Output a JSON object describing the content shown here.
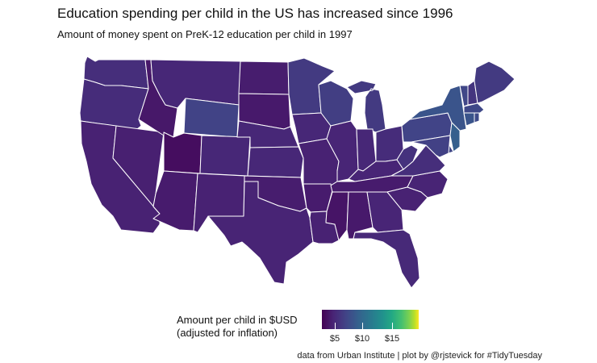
{
  "title": "Education spending per child in the US has increased since 1996",
  "subtitle": "Amount of money spent on PreK-12 education per child in 1997",
  "legend": {
    "title_line1": "Amount per child in $USD",
    "title_line2": "(adjusted for inflation)",
    "ticks": [
      "$5",
      "$10",
      "$15"
    ],
    "palette": "viridis",
    "range": [
      2.5,
      18
    ]
  },
  "caption": "data from Urban Institute | plot by @rjstevick for #TidyTuesday",
  "colors": {
    "low": "#440154",
    "high": "#fde725",
    "border": "#ffffff"
  },
  "states": [
    {
      "name": "WA",
      "value": 5.1
    },
    {
      "name": "OR",
      "value": 5.0
    },
    {
      "name": "CA",
      "value": 4.4
    },
    {
      "name": "NV",
      "value": 4.3
    },
    {
      "name": "ID",
      "value": 3.8
    },
    {
      "name": "MT",
      "value": 4.7
    },
    {
      "name": "WY",
      "value": 6.3
    },
    {
      "name": "UT",
      "value": 3.2
    },
    {
      "name": "AZ",
      "value": 4.0
    },
    {
      "name": "CO",
      "value": 4.7
    },
    {
      "name": "NM",
      "value": 4.4
    },
    {
      "name": "ND",
      "value": 4.1
    },
    {
      "name": "SD",
      "value": 3.9
    },
    {
      "name": "NE",
      "value": 4.7
    },
    {
      "name": "KS",
      "value": 4.7
    },
    {
      "name": "OK",
      "value": 4.1
    },
    {
      "name": "TX",
      "value": 4.5
    },
    {
      "name": "MN",
      "value": 5.8
    },
    {
      "name": "IA",
      "value": 4.7
    },
    {
      "name": "MO",
      "value": 4.4
    },
    {
      "name": "AR",
      "value": 4.0
    },
    {
      "name": "LA",
      "value": 4.4
    },
    {
      "name": "WI",
      "value": 6.0
    },
    {
      "name": "IL",
      "value": 4.6
    },
    {
      "name": "MI",
      "value": 5.8
    },
    {
      "name": "IN",
      "value": 4.7
    },
    {
      "name": "OH",
      "value": 5.0
    },
    {
      "name": "KY",
      "value": 4.6
    },
    {
      "name": "TN",
      "value": 4.0
    },
    {
      "name": "MS",
      "value": 3.6
    },
    {
      "name": "AL",
      "value": 3.9
    },
    {
      "name": "GA",
      "value": 4.6
    },
    {
      "name": "FL",
      "value": 4.8
    },
    {
      "name": "SC",
      "value": 4.4
    },
    {
      "name": "NC",
      "value": 4.5
    },
    {
      "name": "VA",
      "value": 5.1
    },
    {
      "name": "WV",
      "value": 5.3
    },
    {
      "name": "PA",
      "value": 6.4
    },
    {
      "name": "NY",
      "value": 7.6
    },
    {
      "name": "VT",
      "value": 6.6
    },
    {
      "name": "NH",
      "value": 5.5
    },
    {
      "name": "ME",
      "value": 5.8
    },
    {
      "name": "MA",
      "value": 6.7
    },
    {
      "name": "CT",
      "value": 7.6
    },
    {
      "name": "RI",
      "value": 6.8
    },
    {
      "name": "NJ",
      "value": 8.4
    },
    {
      "name": "DE",
      "value": 6.5
    },
    {
      "name": "MD",
      "value": 6.2
    }
  ]
}
